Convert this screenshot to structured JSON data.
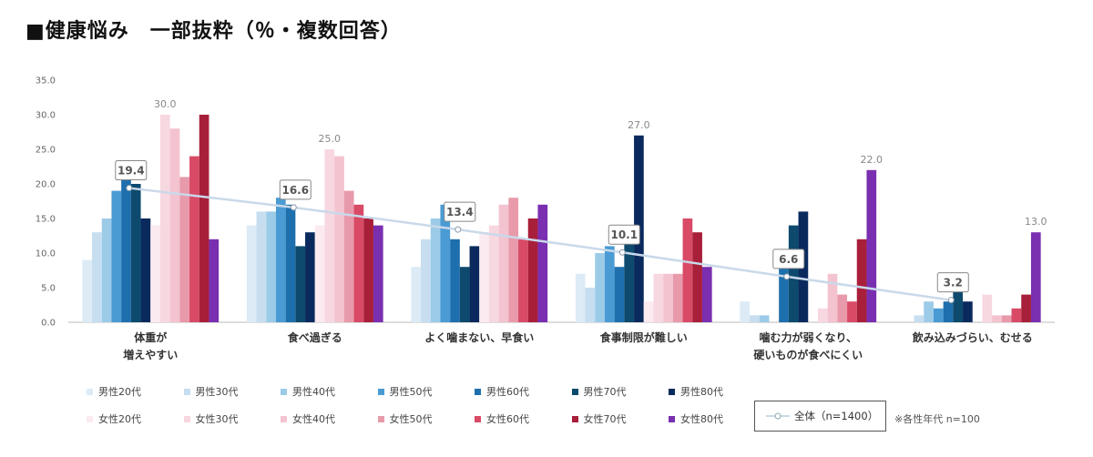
{
  "title": "■健康悩み　一部抜粋（％・複数回答）",
  "legend": {
    "male": [
      "男性20代",
      "男性30代",
      "男性40代",
      "男性50代",
      "男性60代",
      "男性70代",
      "男性80代"
    ],
    "female": [
      "女性20代",
      "女性30代",
      "女性40代",
      "女性50代",
      "女性60代",
      "女性70代",
      "女性80代"
    ],
    "total_label": "全体（n=1400）",
    "note": "※各性年代 n=100"
  },
  "chart_data": {
    "type": "bar",
    "categories": [
      [
        "体重が",
        "増えやすい"
      ],
      [
        "食べ過ぎる"
      ],
      [
        "よく噛まない、早食い"
      ],
      [
        "食事制限が難しい"
      ],
      [
        "噛む力が弱くなり、",
        "硬いものが食べにくい"
      ],
      [
        "飲み込みづらい、むせる"
      ]
    ],
    "ylim": [
      0,
      35
    ],
    "yticks": [
      "0.0",
      "5.0",
      "10.0",
      "15.0",
      "20.0",
      "25.0",
      "30.0",
      "35.0"
    ],
    "series": [
      {
        "name": "男性20代",
        "color": "#dcebf6",
        "values": [
          9,
          14,
          8,
          7,
          3,
          0
        ]
      },
      {
        "name": "男性30代",
        "color": "#c6def0",
        "values": [
          13,
          16,
          12,
          5,
          1,
          1
        ]
      },
      {
        "name": "男性40代",
        "color": "#9ccbe8",
        "values": [
          15,
          16,
          15,
          10,
          1,
          3
        ]
      },
      {
        "name": "男性50代",
        "color": "#4a9bd4",
        "values": [
          19,
          18,
          17,
          11,
          0,
          2
        ]
      },
      {
        "name": "男性60代",
        "color": "#1e6fad",
        "values": [
          22,
          17,
          12,
          8,
          8,
          3
        ]
      },
      {
        "name": "男性70代",
        "color": "#0d4a6e",
        "values": [
          20,
          11,
          8,
          13,
          14,
          6
        ]
      },
      {
        "name": "男性80代",
        "color": "#0a2a5e",
        "values": [
          15,
          13,
          11,
          27,
          16,
          3
        ]
      },
      {
        "name": "女性20代",
        "color": "#fbeaf0",
        "values": [
          14,
          14,
          13,
          3,
          0,
          0
        ]
      },
      {
        "name": "女性30代",
        "color": "#f7d7e0",
        "values": [
          30,
          25,
          14,
          7,
          2,
          4
        ]
      },
      {
        "name": "女性40代",
        "color": "#f3c3d0",
        "values": [
          28,
          24,
          17,
          7,
          7,
          1
        ]
      },
      {
        "name": "女性50代",
        "color": "#e89aaa",
        "values": [
          21,
          19,
          18,
          7,
          4,
          1
        ]
      },
      {
        "name": "女性60代",
        "color": "#d84a66",
        "values": [
          24,
          17,
          12,
          15,
          3,
          2
        ]
      },
      {
        "name": "女性70代",
        "color": "#a81f3a",
        "values": [
          30,
          15,
          15,
          13,
          12,
          4
        ]
      },
      {
        "name": "女性80代",
        "color": "#7a2fb0",
        "values": [
          12,
          14,
          17,
          8,
          22,
          13
        ]
      }
    ],
    "total": {
      "name": "全体（n=1400）",
      "values": [
        19.4,
        16.6,
        13.4,
        10.1,
        6.6,
        3.2
      ],
      "labels": [
        "19.4",
        "16.6",
        "13.4",
        "10.1",
        "6.6",
        "3.2"
      ]
    },
    "peak_labels": [
      "30.0",
      "25.0",
      "",
      "27.0",
      "22.0",
      "13.0"
    ]
  }
}
